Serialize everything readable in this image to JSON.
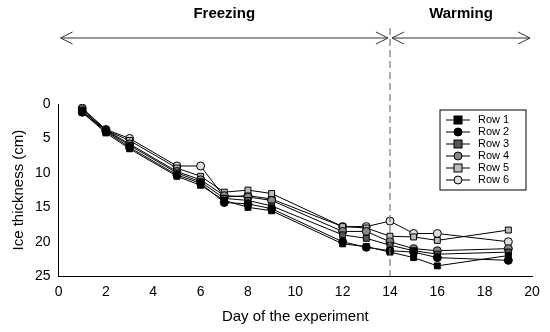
{
  "chart_data": {
    "type": "line",
    "x_label": "Day of the experiment",
    "y_label": "Ice thickness (cm)",
    "x": [
      1,
      2,
      3,
      5,
      6,
      7,
      8,
      9,
      12,
      13,
      14,
      15,
      16,
      19
    ],
    "series": [
      {
        "name": "Row 1",
        "color": "#000000",
        "marker": "square",
        "values": [
          1.2,
          4.2,
          6.5,
          10.5,
          11.8,
          14.0,
          15.0,
          15.5,
          20.3,
          20.7,
          21.5,
          22.3,
          23.5,
          22.0
        ]
      },
      {
        "name": "Row 2",
        "color": "#000000",
        "marker": "circle",
        "values": [
          1.2,
          4.0,
          6.3,
          10.3,
          11.5,
          14.3,
          14.5,
          15.2,
          20.0,
          20.8,
          21.3,
          21.5,
          22.3,
          22.7
        ]
      },
      {
        "name": "Row 3",
        "color": "#555555",
        "marker": "square",
        "values": [
          1.0,
          3.9,
          6.0,
          10.0,
          11.3,
          13.7,
          14.0,
          14.8,
          19.0,
          19.5,
          20.5,
          21.3,
          21.8,
          21.5
        ]
      },
      {
        "name": "Row 4",
        "color": "#888888",
        "marker": "circle",
        "values": [
          1.0,
          3.8,
          5.8,
          9.8,
          11.0,
          13.3,
          13.5,
          14.0,
          18.5,
          18.5,
          20.0,
          21.0,
          21.3,
          21.0
        ]
      },
      {
        "name": "Row 5",
        "color": "#bbbbbb",
        "marker": "square",
        "values": [
          0.7,
          3.8,
          5.3,
          9.3,
          10.5,
          12.8,
          12.5,
          13.0,
          17.8,
          18.0,
          19.2,
          19.3,
          19.8,
          18.3
        ]
      },
      {
        "name": "Row 6",
        "color": "#dddddd",
        "marker": "circle",
        "values": [
          0.6,
          3.7,
          5.0,
          9.0,
          9.0,
          13.5,
          13.3,
          13.8,
          17.8,
          17.8,
          17.0,
          18.8,
          18.8,
          20.0
        ]
      }
    ],
    "xlim": [
      0,
      20
    ],
    "xticks": [
      0,
      2,
      4,
      6,
      8,
      10,
      12,
      14,
      16,
      18,
      20
    ],
    "ylim": [
      25,
      0
    ],
    "yticks": [
      0,
      5,
      10,
      15,
      20,
      25
    ],
    "grid": false,
    "legend": "upper right",
    "annotations": [
      {
        "text": "Freezing",
        "from": 0,
        "to": 14
      },
      {
        "text": "Warming",
        "from": 14,
        "to": 20
      }
    ]
  }
}
